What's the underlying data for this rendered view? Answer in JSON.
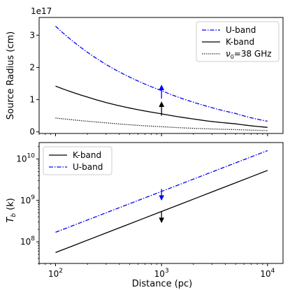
{
  "chart_data": [
    {
      "type": "line",
      "ylabel": "Source Radius (cm)",
      "offset_label": "1e17",
      "x_scale": "log",
      "xlim": [
        70,
        14000
      ],
      "ylim": [
        -0.05,
        3.55
      ],
      "y_ticks": [
        0,
        1,
        2,
        3
      ],
      "y_tick_labels": [
        "0",
        "1",
        "2",
        "3"
      ],
      "legend_position": "upper right",
      "grid": false,
      "series": [
        {
          "name": "U-band",
          "color": "#0000ff",
          "dash": "dashdot",
          "x": [
            100,
            200,
            300,
            500,
            1000,
            2000,
            3000,
            5000,
            10000
          ],
          "y": [
            3.28,
            2.47,
            2.09,
            1.7,
            1.28,
            0.92,
            0.75,
            0.57,
            0.33
          ]
        },
        {
          "name": "K-band",
          "color": "#000000",
          "dash": "solid",
          "x": [
            100,
            200,
            300,
            500,
            1000,
            2000,
            3000,
            5000,
            10000
          ],
          "y": [
            1.42,
            1.08,
            0.91,
            0.74,
            0.56,
            0.4,
            0.32,
            0.25,
            0.14
          ]
        },
        {
          "name": "ν0=38 GHz",
          "color": "#000000",
          "dash": "dotted",
          "x": [
            100,
            200,
            300,
            500,
            1000,
            2000,
            3000,
            5000,
            10000
          ],
          "y": [
            0.43,
            0.33,
            0.28,
            0.22,
            0.16,
            0.11,
            0.09,
            0.07,
            0.04
          ]
        }
      ],
      "annotations": [
        {
          "type": "arrow-up",
          "x": 1000,
          "y_from": 1.03,
          "y_to": 1.38,
          "color": "#0000ff"
        },
        {
          "type": "arrow-up",
          "x": 1000,
          "y_from": 0.5,
          "y_to": 0.86,
          "color": "#000000"
        }
      ]
    },
    {
      "type": "line",
      "xlabel": "Distance (pc)",
      "ylabel": "T_b (k)",
      "x_scale": "log",
      "y_scale": "log",
      "xlim": [
        70,
        14000
      ],
      "ylim": [
        30000000,
        25000000000
      ],
      "x_ticks": [
        100,
        1000,
        10000
      ],
      "x_tick_labels": [
        {
          "base": "10",
          "exp": "2"
        },
        {
          "base": "10",
          "exp": "3"
        },
        {
          "base": "10",
          "exp": "4"
        }
      ],
      "y_ticks": [
        100000000,
        1000000000,
        10000000000
      ],
      "y_tick_labels": [
        {
          "base": "10",
          "exp": "8"
        },
        {
          "base": "10",
          "exp": "9"
        },
        {
          "base": "10",
          "exp": "10"
        }
      ],
      "legend_position": "upper left",
      "grid": false,
      "series": [
        {
          "name": "K-band",
          "color": "#000000",
          "dash": "solid",
          "x": [
            100,
            10000
          ],
          "y": [
            55000000,
            5300000000
          ]
        },
        {
          "name": "U-band",
          "color": "#0000ff",
          "dash": "dashdot",
          "x": [
            100,
            10000
          ],
          "y": [
            170000000,
            16000000000
          ]
        }
      ],
      "annotations": [
        {
          "type": "arrow-down",
          "x": 1000,
          "y_from": 1900000000,
          "y_to": 1150000000,
          "color": "#0000ff"
        },
        {
          "type": "arrow-down",
          "x": 1000,
          "y_from": 550000000,
          "y_to": 330000000,
          "color": "#000000"
        }
      ]
    }
  ]
}
